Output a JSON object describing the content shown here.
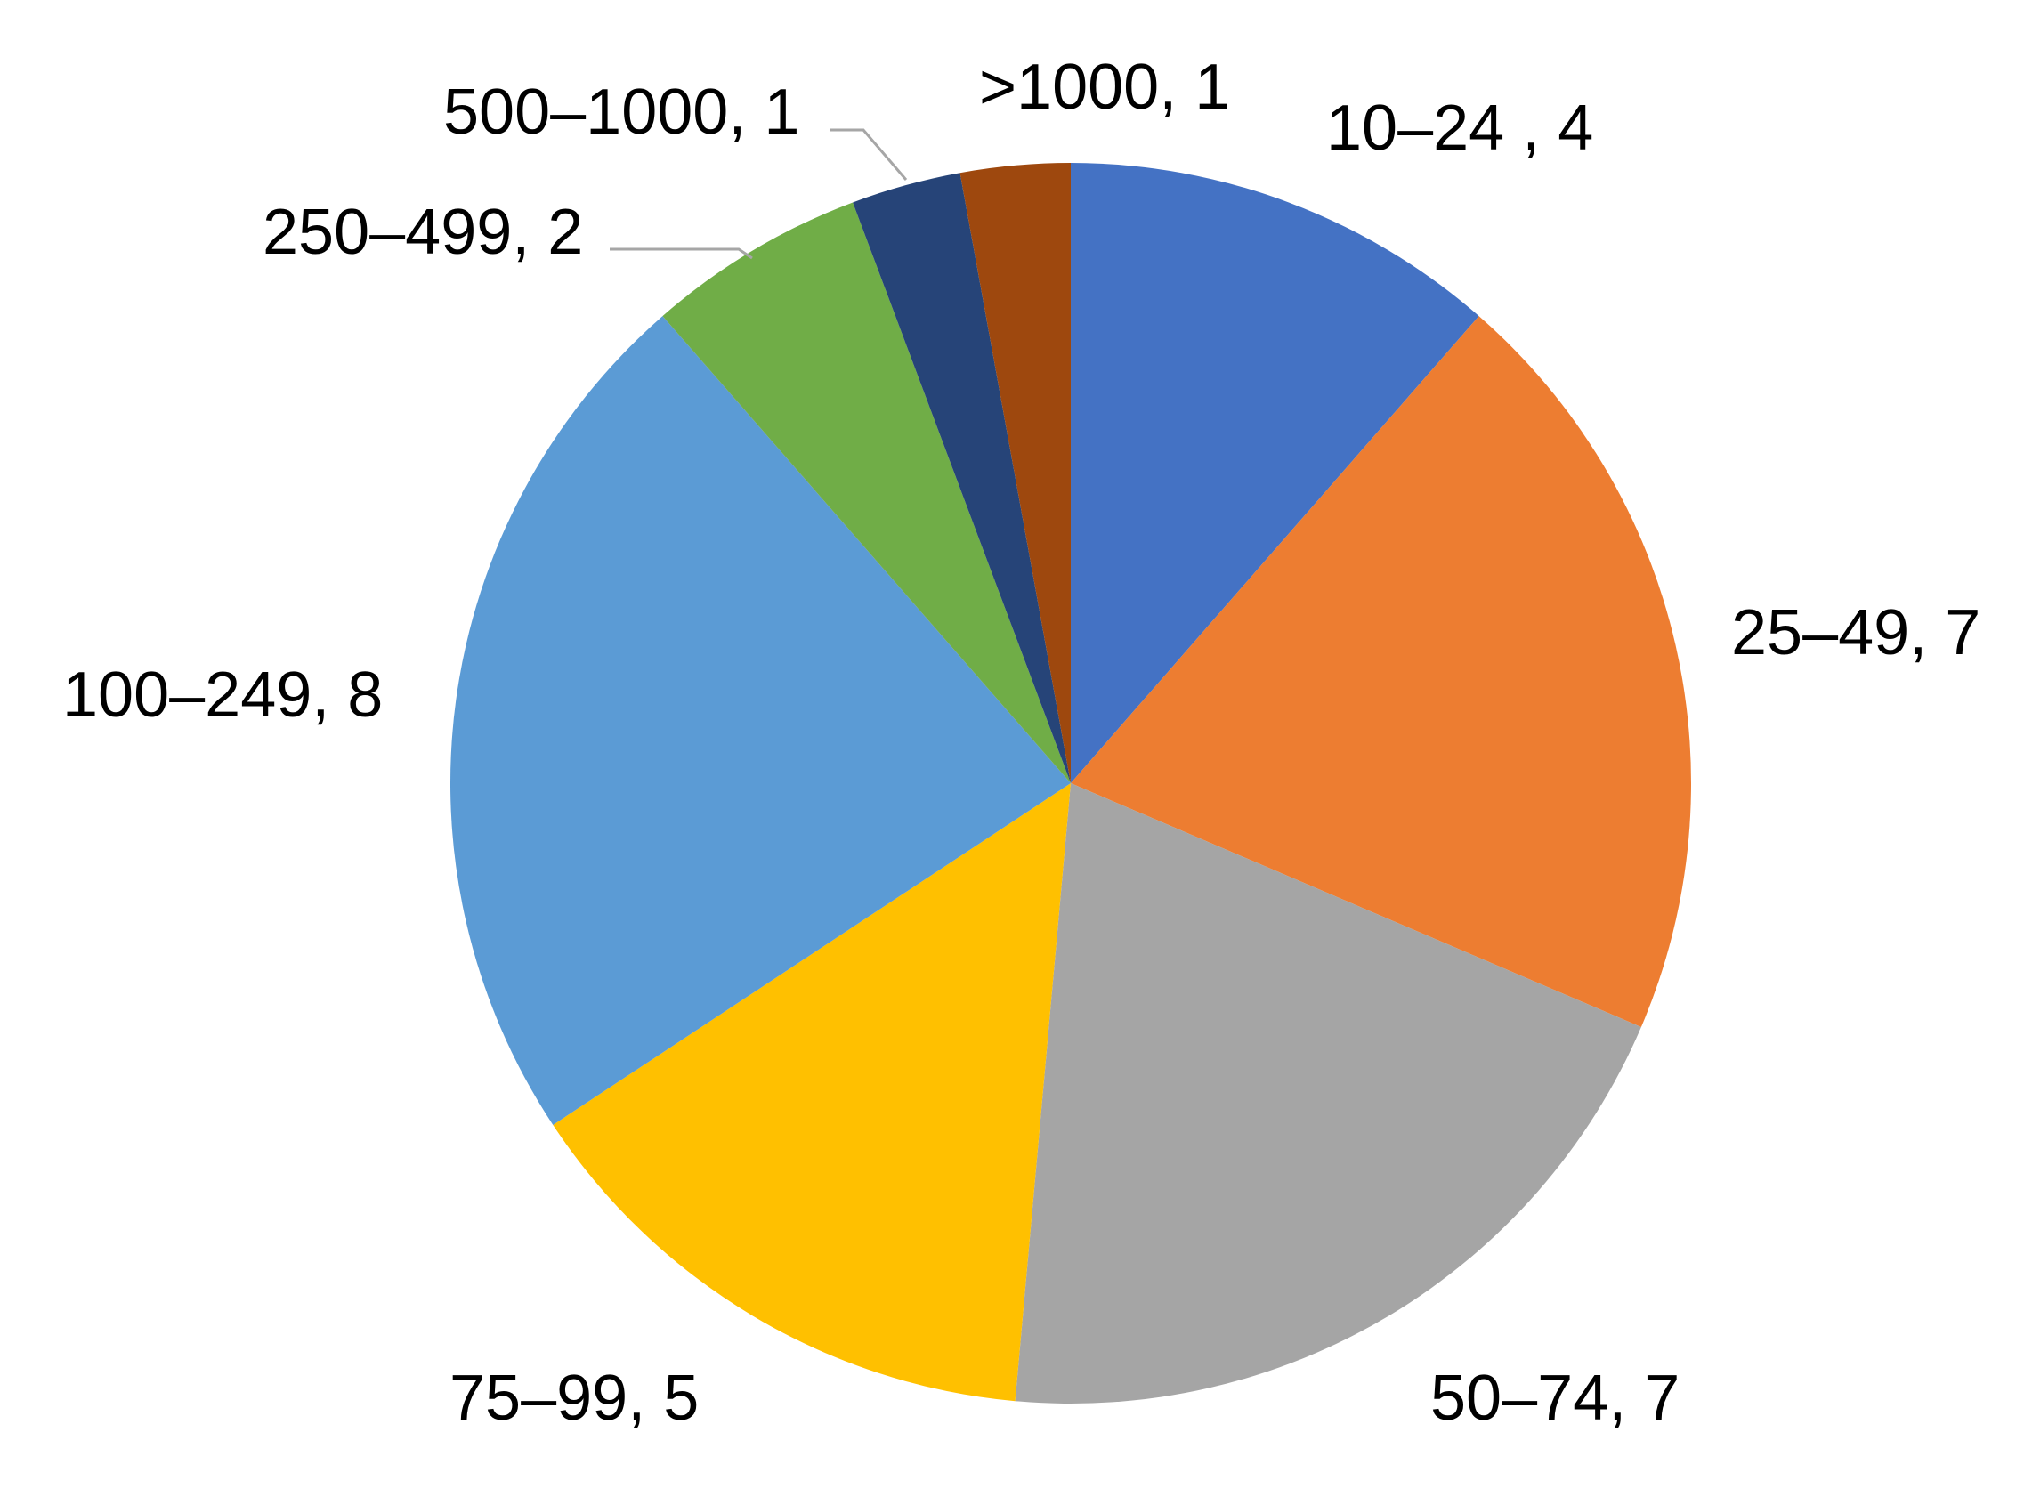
{
  "chart_data": {
    "type": "pie",
    "title": "",
    "start_angle_deg": 0,
    "direction": "clockwise",
    "slices": [
      {
        "category": "10–24",
        "value": 4,
        "color": "#4472C4",
        "label": "10–24 , 4"
      },
      {
        "category": "25–49",
        "value": 7,
        "color": "#ED7D31",
        "label": "25–49, 7"
      },
      {
        "category": "50–74",
        "value": 7,
        "color": "#A5A5A5",
        "label": "50–74, 7"
      },
      {
        "category": "75–99",
        "value": 5,
        "color": "#FFC000",
        "label": "75–99, 5"
      },
      {
        "category": "100–249",
        "value": 8,
        "color": "#5B9BD5",
        "label": "100–249, 8"
      },
      {
        "category": "250–499",
        "value": 2,
        "color": "#70AD47",
        "label": "250–499, 2"
      },
      {
        "category": "500–1000",
        "value": 1,
        "color": "#264478",
        "label": "500–1000, 1"
      },
      {
        "category": ">1000",
        "value": 1,
        "color": "#9E480E",
        "label": ">1000, 1"
      }
    ]
  }
}
